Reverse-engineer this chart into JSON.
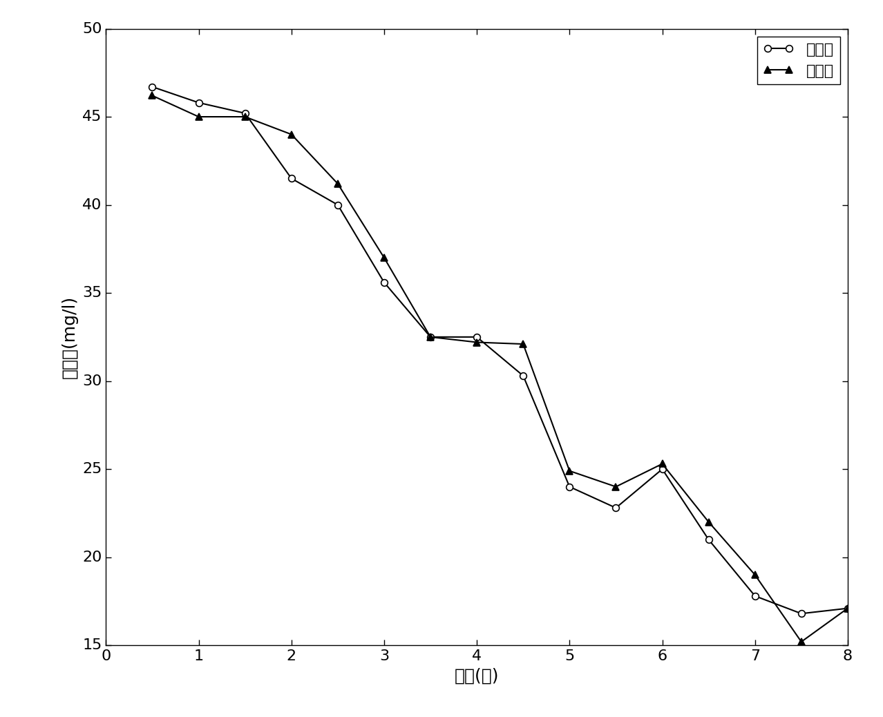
{
  "estimated_x": [
    0.5,
    1.0,
    1.5,
    2.0,
    2.5,
    3.0,
    3.5,
    4.0,
    4.5,
    5.0,
    5.5,
    6.0,
    6.5,
    7.0,
    7.5,
    8.0
  ],
  "estimated_y": [
    46.7,
    45.8,
    45.2,
    41.5,
    40.0,
    35.6,
    32.5,
    32.5,
    30.3,
    24.0,
    22.8,
    25.0,
    21.0,
    17.8,
    16.8,
    17.1
  ],
  "true_x": [
    0.5,
    1.0,
    1.5,
    2.0,
    2.5,
    3.0,
    3.5,
    4.0,
    4.5,
    5.0,
    5.5,
    6.0,
    6.5,
    7.0,
    7.5,
    8.0
  ],
  "true_y": [
    46.2,
    45.0,
    45.0,
    44.0,
    41.2,
    37.0,
    32.5,
    32.2,
    32.1,
    24.9,
    24.0,
    25.3,
    22.0,
    19.0,
    15.2,
    17.1
  ],
  "xlabel": "时间(天)",
  "ylabel": "浓度値(mg/l)",
  "legend_estimated": "估计値",
  "legend_true": "真实値",
  "xlim": [
    0,
    8
  ],
  "ylim": [
    15,
    50
  ],
  "xticks": [
    0,
    1,
    2,
    3,
    4,
    5,
    6,
    7,
    8
  ],
  "yticks": [
    15,
    20,
    25,
    30,
    35,
    40,
    45,
    50
  ],
  "line_color": "#000000",
  "background_color": "#ffffff",
  "marker_size": 7,
  "line_width": 1.5,
  "font_size_label": 18,
  "font_size_tick": 16,
  "font_size_legend": 16
}
